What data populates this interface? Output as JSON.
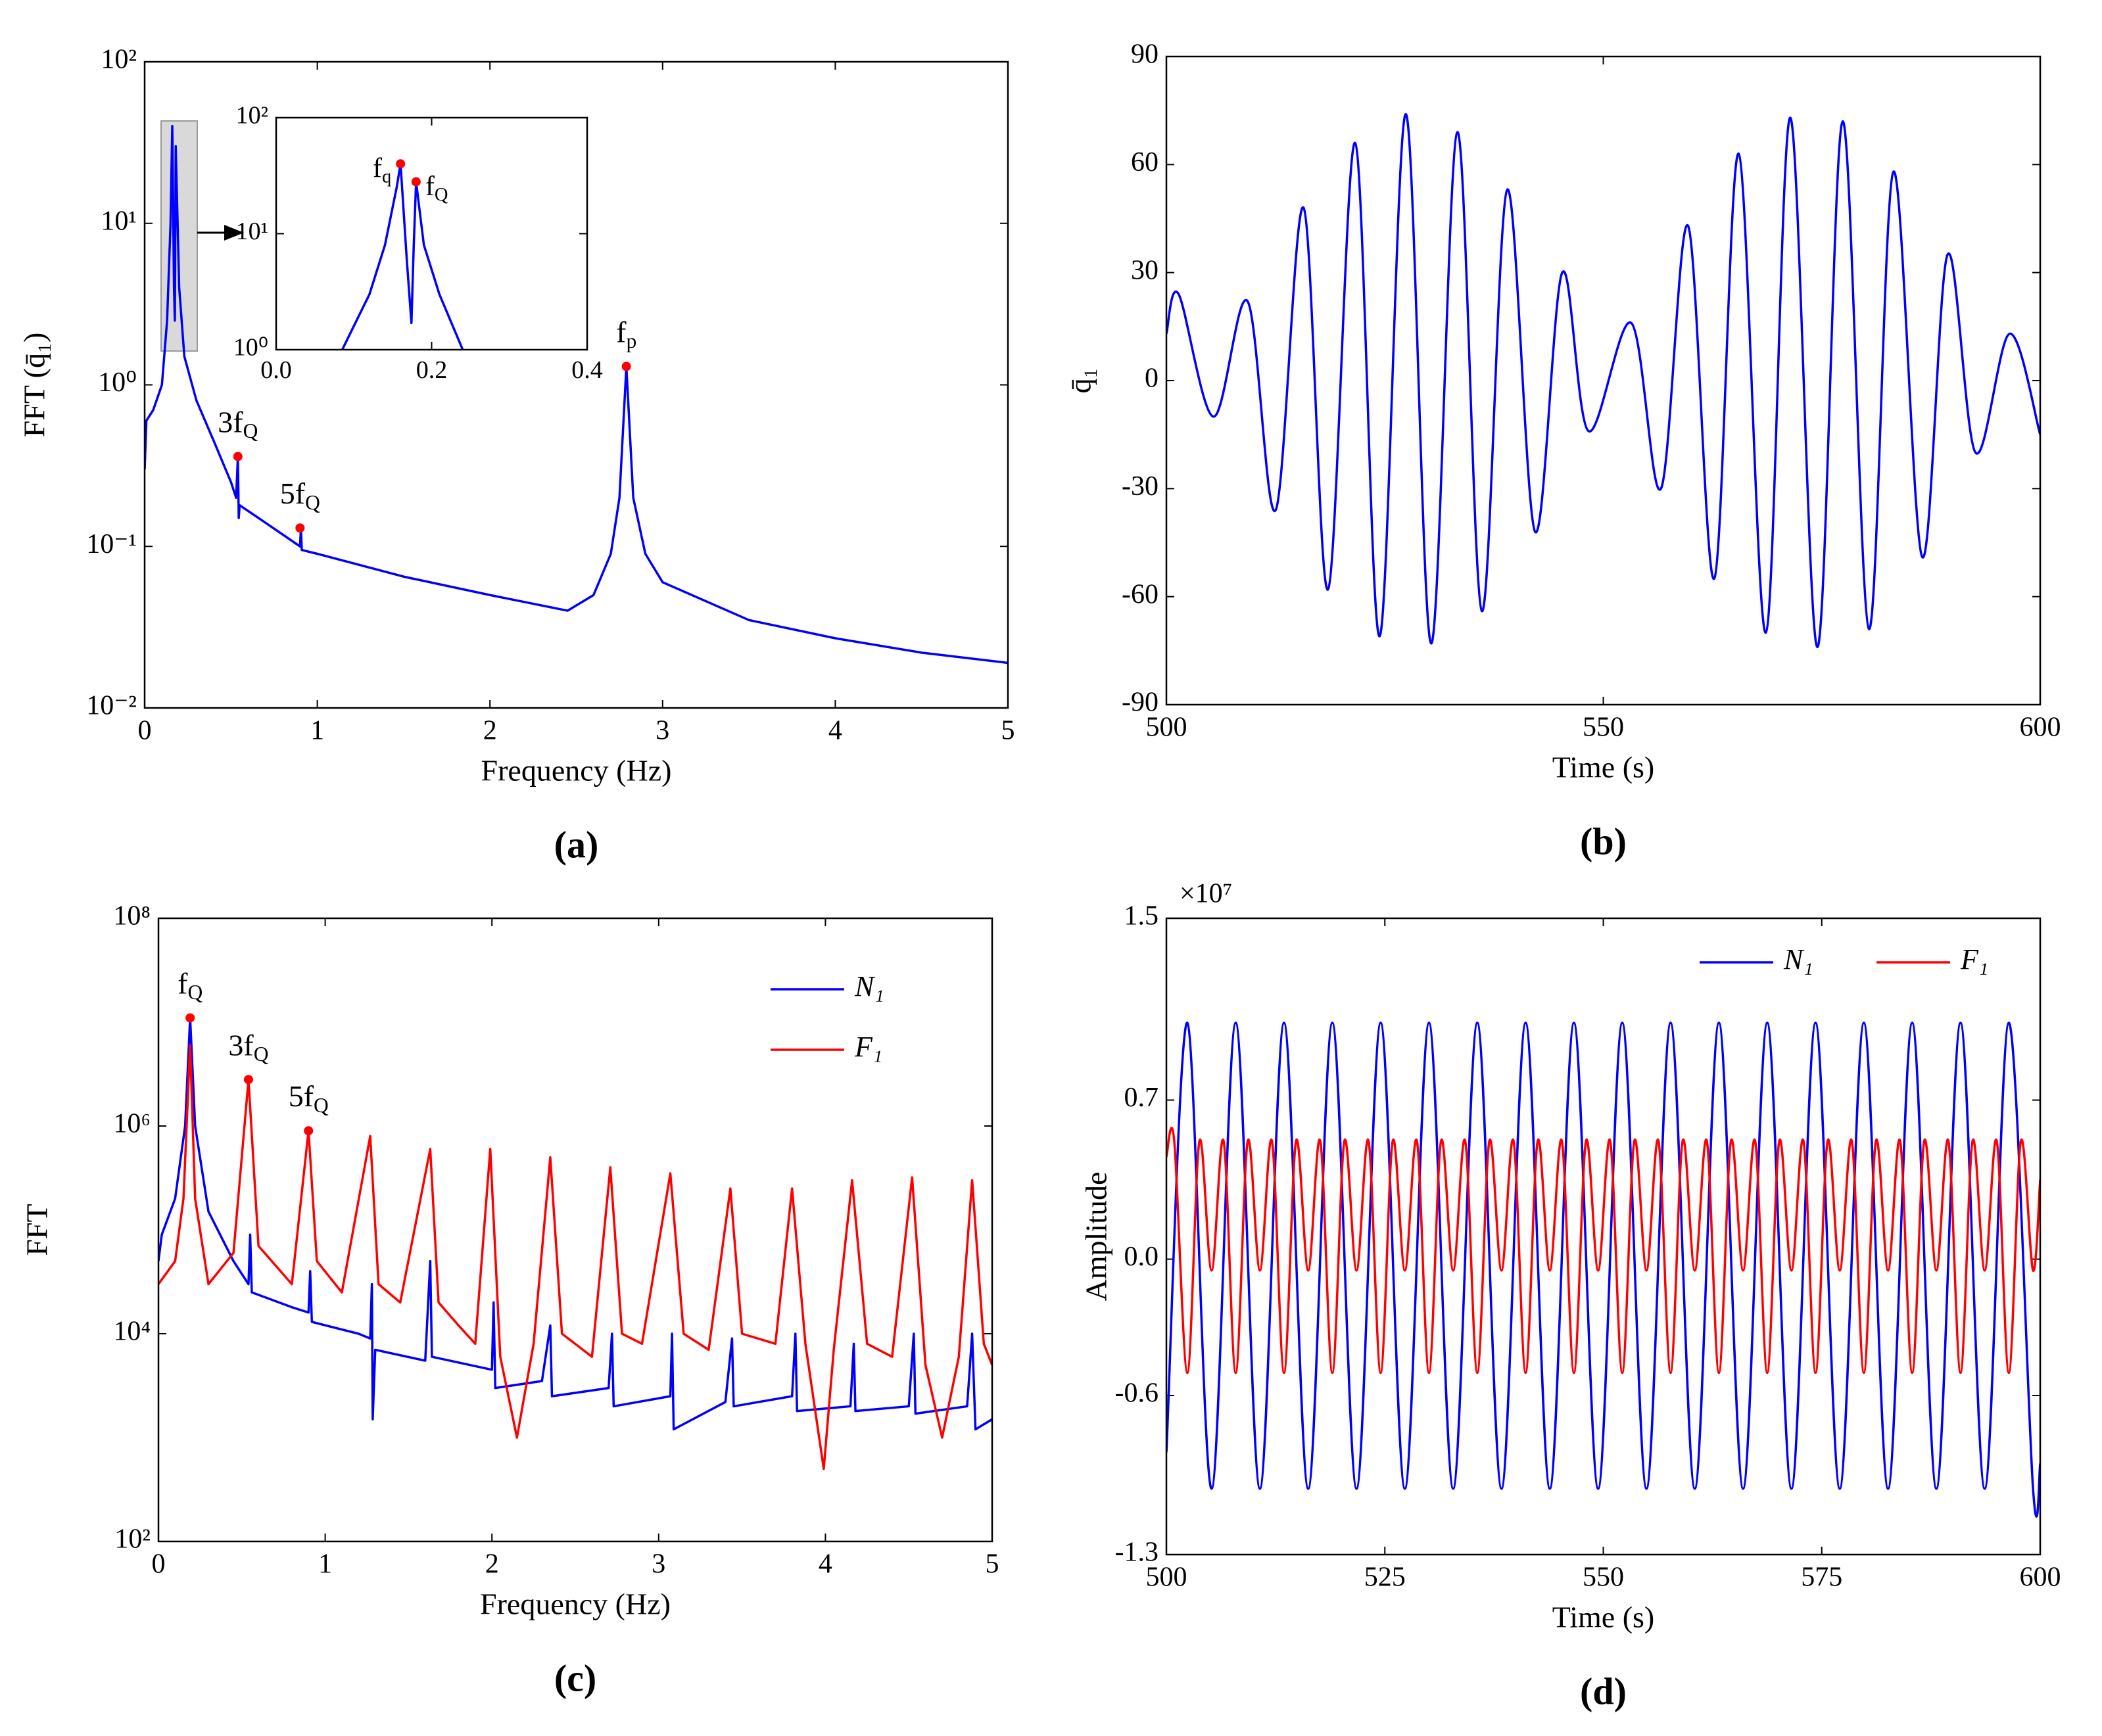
{
  "chart_data": [
    {
      "type": "line",
      "label": "(a)",
      "xlabel": "Frequency (Hz)",
      "ylabel": "FFT (q̄₁)",
      "yscale": "log",
      "xlim": [
        0,
        5
      ],
      "ylim": [
        0.01,
        100
      ],
      "xticks": [
        0,
        1,
        2,
        3,
        4,
        5
      ],
      "yticks": [
        {
          "value": 0.01,
          "label": "10⁻²"
        },
        {
          "value": 0.1,
          "label": "10⁻¹"
        },
        {
          "value": 1,
          "label": "10⁰"
        },
        {
          "value": 10,
          "label": "10¹"
        },
        {
          "value": 100,
          "label": "10²"
        }
      ],
      "series": [
        {
          "color": "#0000ff",
          "x": [
            0,
            0.01,
            0.05,
            0.1,
            0.13,
            0.15,
            0.16,
            0.17,
            0.175,
            0.18,
            0.2,
            0.23,
            0.3,
            0.4,
            0.5,
            0.53,
            0.54,
            0.545,
            0.55,
            0.7,
            0.9,
            0.905,
            0.91,
            1.0,
            1.5,
            2.0,
            2.45,
            2.6,
            2.7,
            2.75,
            2.79,
            2.83,
            2.9,
            3.0,
            3.5,
            4.0,
            4.5,
            5.0
          ],
          "values": [
            0.3,
            0.6,
            0.7,
            1.0,
            2.5,
            10,
            40,
            4,
            2.5,
            30,
            4,
            1.5,
            0.8,
            0.45,
            0.25,
            0.2,
            0.36,
            0.15,
            0.18,
            0.14,
            0.1,
            0.13,
            0.095,
            0.09,
            0.065,
            0.05,
            0.04,
            0.05,
            0.09,
            0.2,
            1.3,
            0.2,
            0.09,
            0.06,
            0.035,
            0.027,
            0.022,
            0.019
          ]
        }
      ],
      "annotations": [
        {
          "text": "3f",
          "sub": "Q",
          "x": 0.54,
          "y": 0.36,
          "color": "#ff0000"
        },
        {
          "text": "5f",
          "sub": "Q",
          "x": 0.9,
          "y": 0.13,
          "color": "#ff0000"
        },
        {
          "text": "f",
          "sub": "p",
          "x": 2.79,
          "y": 1.3,
          "color": "#ff0000"
        }
      ],
      "inset": {
        "type": "line",
        "yscale": "log",
        "xlim": [
          0,
          0.4
        ],
        "ylim": [
          1,
          100
        ],
        "xticks": [
          {
            "value": 0,
            "label": "0.0"
          },
          {
            "value": 0.2,
            "label": "0.2"
          },
          {
            "value": 0.4,
            "label": "0.4"
          }
        ],
        "yticks": [
          {
            "value": 1,
            "label": "10⁰"
          },
          {
            "value": 10,
            "label": "10¹"
          },
          {
            "value": 100,
            "label": "10²"
          }
        ],
        "series": [
          {
            "color": "#0000ff",
            "x": [
              0.085,
              0.12,
              0.14,
              0.155,
              0.16,
              0.168,
              0.174,
              0.177,
              0.18,
              0.19,
              0.21,
              0.24
            ],
            "values": [
              1,
              3,
              8,
              25,
              40,
              6,
              1.7,
              8,
              28,
              8,
              3,
              1
            ]
          }
        ],
        "annotations": [
          {
            "text": "f",
            "sub": "q",
            "x": 0.16,
            "y": 40,
            "color": "#ff0000"
          },
          {
            "text": "f",
            "sub": "Q",
            "x": 0.18,
            "y": 28,
            "color": "#ff0000"
          }
        ]
      }
    },
    {
      "type": "line",
      "label": "(b)",
      "xlabel": "Time (s)",
      "ylabel": "q̄₁",
      "xlim": [
        500,
        600
      ],
      "ylim": [
        -90,
        90
      ],
      "xticks": [
        500,
        550,
        600
      ],
      "yticks": [
        -90,
        -60,
        -30,
        0,
        30,
        60,
        90
      ],
      "series": [
        {
          "color": "#0000ff",
          "x": [
            500,
            501.4,
            505.4,
            509.3,
            512.5,
            515.7,
            518.5,
            521.6,
            524.4,
            527.4,
            530.3,
            533.3,
            536.1,
            539,
            542.2,
            545.3,
            548.3,
            553.2,
            556.6,
            559.7,
            562.7,
            565.5,
            568.6,
            571.4,
            574.5,
            577.4,
            580.4,
            583.2,
            586.5,
            589.4,
            592.6,
            596.5,
            600
          ],
          "values": [
            13,
            24,
            -10,
            22,
            -36,
            48,
            -58,
            66,
            -71,
            74,
            -73,
            69,
            -64,
            53,
            -42,
            30,
            -14,
            16,
            -30,
            43,
            -55,
            63,
            -70,
            73,
            -74,
            72,
            -69,
            58,
            -49,
            35,
            -20,
            13,
            -15
          ]
        }
      ]
    },
    {
      "type": "line",
      "label": "(c)",
      "xlabel": "Frequency (Hz)",
      "ylabel": "FFT",
      "yscale": "log",
      "xlim": [
        0,
        5
      ],
      "ylim": [
        100,
        100000000
      ],
      "xticks": [
        0,
        1,
        2,
        3,
        4,
        5
      ],
      "yticks": [
        {
          "value": 100,
          "label": "10²"
        },
        {
          "value": 10000,
          "label": "10⁴"
        },
        {
          "value": 1000000,
          "label": "10⁶"
        },
        {
          "value": 100000000,
          "label": "10⁸"
        }
      ],
      "legend": "upper right",
      "legend_columns": 1,
      "series": [
        {
          "name": "N₁",
          "color": "#0000ff",
          "x": [
            0,
            0.02,
            0.1,
            0.16,
            0.19,
            0.22,
            0.3,
            0.45,
            0.54,
            0.55,
            0.56,
            0.8,
            0.9,
            0.91,
            0.92,
            1.2,
            1.27,
            1.28,
            1.285,
            1.3,
            1.6,
            1.63,
            1.64,
            2.0,
            2.01,
            2.02,
            2.3,
            2.35,
            2.36,
            2.7,
            2.72,
            2.73,
            3.07,
            3.08,
            3.09,
            3.4,
            3.44,
            3.45,
            3.8,
            3.82,
            3.83,
            4.15,
            4.17,
            4.18,
            4.5,
            4.53,
            4.54,
            4.85,
            4.88,
            4.9,
            5
          ],
          "values": [
            50000,
            90000,
            200000,
            1000000,
            11000000,
            1000000,
            150000,
            50000,
            30000,
            90000,
            25000,
            18000,
            16000,
            40000,
            13000,
            10000,
            9000,
            30000,
            1500,
            7000,
            5500,
            50000,
            6000,
            4500,
            20000,
            3000,
            3500,
            12000,
            2500,
            3000,
            10000,
            2000,
            2500,
            10000,
            1200,
            2200,
            9000,
            2000,
            2500,
            10000,
            1800,
            2000,
            8000,
            1800,
            2000,
            10000,
            1700,
            2000,
            10000,
            1200,
            1500
          ]
        },
        {
          "name": "F₁",
          "color": "#ff0000",
          "x": [
            0,
            0.1,
            0.15,
            0.19,
            0.22,
            0.3,
            0.45,
            0.54,
            0.6,
            0.8,
            0.9,
            0.95,
            1.1,
            1.27,
            1.32,
            1.45,
            1.63,
            1.68,
            1.8,
            1.9,
            1.99,
            2.05,
            2.15,
            2.25,
            2.35,
            2.42,
            2.6,
            2.71,
            2.78,
            2.9,
            3.07,
            3.15,
            3.3,
            3.43,
            3.5,
            3.7,
            3.8,
            3.88,
            3.99,
            4.05,
            4.16,
            4.25,
            4.4,
            4.52,
            4.6,
            4.7,
            4.8,
            4.88,
            4.95,
            5
          ],
          "values": [
            30000,
            50000,
            200000,
            6000000,
            200000,
            30000,
            60000,
            2800000,
            70000,
            30000,
            900000,
            50000,
            25000,
            800000,
            30000,
            20000,
            600000,
            20000,
            12000,
            8000,
            600000,
            6000,
            1000,
            8000,
            500000,
            10000,
            6000,
            400000,
            10000,
            8000,
            350000,
            10000,
            7000,
            250000,
            10000,
            8000,
            250000,
            8000,
            500,
            7000,
            300000,
            8000,
            6000,
            320000,
            5000,
            1000,
            6000,
            300000,
            8000,
            5000
          ]
        }
      ],
      "annotations": [
        {
          "text": "f",
          "sub": "Q",
          "x": 0.19,
          "y": 11000000,
          "color": "#ff0000"
        },
        {
          "text": "3f",
          "sub": "Q",
          "x": 0.54,
          "y": 2800000,
          "color": "#ff0000"
        },
        {
          "text": "5f",
          "sub": "Q",
          "x": 0.9,
          "y": 900000,
          "color": "#ff0000"
        }
      ]
    },
    {
      "type": "line",
      "label": "(d)",
      "xlabel": "Time (s)",
      "ylabel": "Amplitude",
      "axis_multiplier": "×10⁷",
      "xlim": [
        500,
        600
      ],
      "ylim": [
        -1.3,
        1.5
      ],
      "xticks": [
        500,
        525,
        550,
        575,
        600
      ],
      "yticks": [
        -1.3,
        -0.6,
        {
          "value": 0,
          "label": "0.0"
        },
        0.7,
        1.5
      ],
      "legend": "upper right",
      "legend_columns": 2,
      "series": [
        {
          "name": "N₁",
          "color": "#0000ff",
          "x": [
            500,
            502.4,
            505.17,
            507.93,
            510.7,
            513.46,
            516.23,
            518.99,
            521.76,
            524.52,
            527.29,
            530.05,
            532.82,
            535.58,
            538.35,
            541.11,
            543.88,
            546.64,
            549.41,
            552.17,
            554.94,
            557.7,
            560.47,
            563.23,
            566,
            568.76,
            571.53,
            574.29,
            577.06,
            579.82,
            582.59,
            585.35,
            588.12,
            590.88,
            593.65,
            596.41,
            599.18,
            600
          ],
          "values": [
            -0.85,
            1.04,
            -1.01,
            1.04,
            -1.01,
            1.04,
            -1.01,
            1.04,
            -1.01,
            1.04,
            -1.01,
            1.04,
            -1.01,
            1.04,
            -1.01,
            1.04,
            -1.01,
            1.04,
            -1.01,
            1.04,
            -1.01,
            1.04,
            -1.01,
            1.04,
            -1.01,
            1.04,
            -1.01,
            1.04,
            -1.01,
            1.04,
            -1.01,
            1.04,
            -1.01,
            1.04,
            -1.01,
            1.04,
            -1.01,
            -0.9
          ]
        },
        {
          "name": "F₁",
          "color": "#ff0000",
          "x": [
            500,
            500.9,
            502.4,
            503.78,
            505.17,
            506.55,
            507.93,
            509.31,
            510.7,
            512.08,
            513.46,
            514.84,
            516.23,
            517.61,
            518.99,
            520.37,
            521.76,
            523.14,
            524.52,
            525.9,
            527.29,
            528.67,
            530.05,
            531.43,
            532.82,
            534.2,
            535.58,
            536.96,
            538.35,
            539.73,
            541.11,
            542.49,
            543.88,
            545.26,
            546.64,
            548.02,
            549.41,
            550.79,
            552.17,
            553.55,
            554.94,
            556.32,
            557.7,
            559.08,
            560.47,
            561.85,
            563.23,
            564.61,
            566,
            567.38,
            568.76,
            570.14,
            571.53,
            572.91,
            574.29,
            575.67,
            577.06,
            578.44,
            579.82,
            581.2,
            582.59,
            583.97,
            585.35,
            586.73,
            588.12,
            589.5,
            590.88,
            592.26,
            593.65,
            595.03,
            596.41,
            597.79,
            599.18,
            600
          ],
          "values": [
            0.45,
            0.52,
            -0.5,
            0.52,
            -0.05,
            0.52,
            -0.5,
            0.52,
            -0.05,
            0.52,
            -0.5,
            0.52,
            -0.05,
            0.52,
            -0.5,
            0.52,
            -0.05,
            0.52,
            -0.5,
            0.52,
            -0.05,
            0.52,
            -0.5,
            0.52,
            -0.05,
            0.52,
            -0.5,
            0.52,
            -0.05,
            0.52,
            -0.5,
            0.52,
            -0.05,
            0.52,
            -0.5,
            0.52,
            -0.05,
            0.52,
            -0.5,
            0.52,
            -0.05,
            0.52,
            -0.5,
            0.52,
            -0.05,
            0.52,
            -0.5,
            0.52,
            -0.05,
            0.52,
            -0.5,
            0.52,
            -0.05,
            0.52,
            -0.5,
            0.52,
            -0.05,
            0.52,
            -0.5,
            0.52,
            -0.05,
            0.52,
            -0.5,
            0.52,
            -0.05,
            0.52,
            -0.5,
            0.52,
            -0.05,
            0.52,
            -0.5,
            0.52,
            -0.05,
            0.35
          ]
        }
      ]
    }
  ]
}
